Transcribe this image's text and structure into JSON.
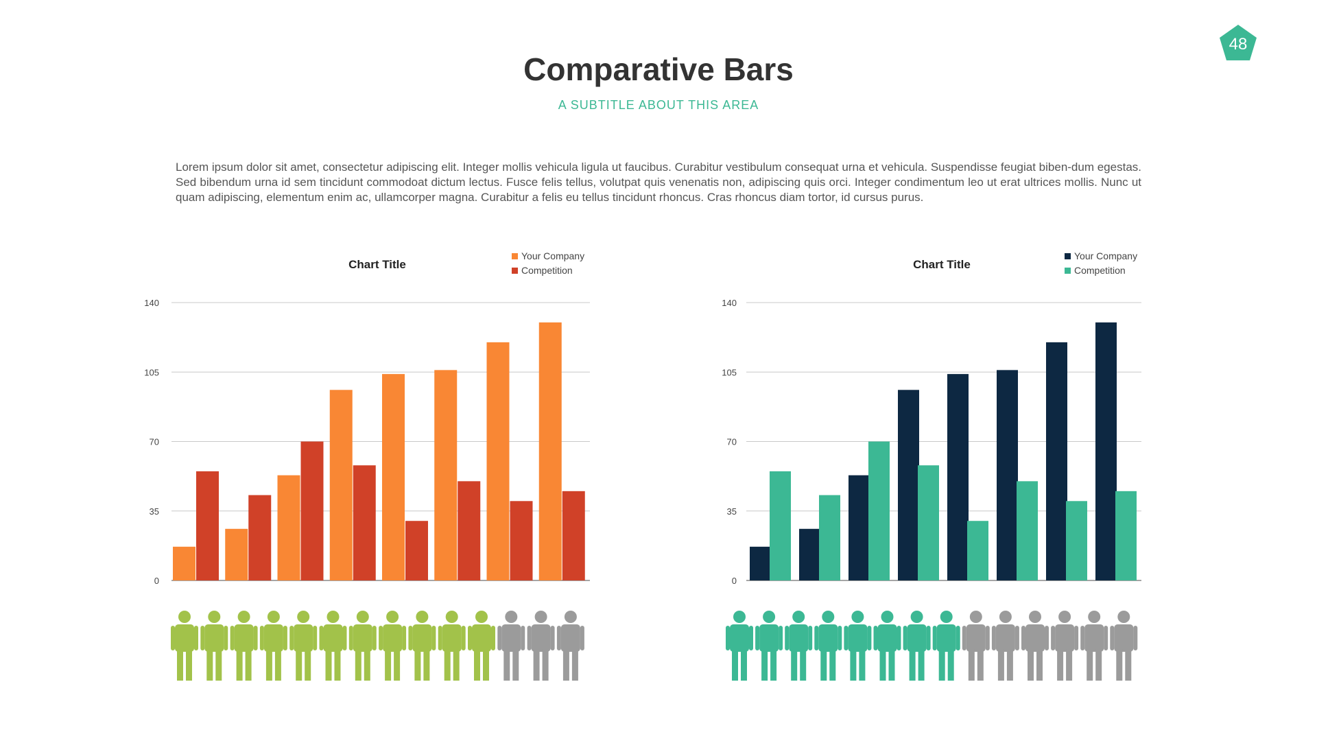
{
  "page": {
    "number": "48",
    "title": "Comparative Bars",
    "subtitle": "A SUBTITLE ABOUT THIS AREA",
    "body": "Lorem ipsum dolor sit amet, consectetur adipiscing elit. Integer mollis vehicula ligula ut faucibus. Curabitur vestibulum consequat urna et vehicula. Suspendisse feugiat biben-dum egestas. Sed bibendum urna id sem tincidunt commodoat dictum lectus. Fusce felis tellus, volutpat quis venenatis non, adipiscing quis orci. Integer condimentum leo ut erat ultrices mollis. Nunc ut quam adipiscing, elementum enim ac, ullamcorper magna. Curabitur a felis eu tellus tincidunt rhoncus. Cras rhoncus diam tortor, id cursus purus."
  },
  "colors": {
    "accent": "#3cb894",
    "orange": "#f98734",
    "red": "#d04128",
    "navy": "#0d2842",
    "teal": "#3cb894",
    "green": "#a2c24a",
    "gray": "#9b9b9b",
    "grid": "#c8c8c8"
  },
  "chart_data": [
    {
      "type": "bar",
      "title": "Chart Title",
      "ylim": [
        0,
        140
      ],
      "yticks": [
        "0",
        "35",
        "70",
        "105",
        "140"
      ],
      "grid": true,
      "legend_position": "top-right",
      "series": [
        {
          "name": "Your Company",
          "color": "#f98734",
          "values": [
            17,
            26,
            53,
            96,
            104,
            106,
            120,
            130
          ]
        },
        {
          "name": "Competition",
          "color": "#d04128",
          "values": [
            55,
            43,
            70,
            58,
            30,
            50,
            40,
            45
          ]
        }
      ],
      "people": {
        "total": 14,
        "highlighted": 11,
        "highlight_color": "#a2c24a",
        "rest_color": "#9b9b9b"
      }
    },
    {
      "type": "bar",
      "title": "Chart Title",
      "ylim": [
        0,
        140
      ],
      "yticks": [
        "0",
        "35",
        "70",
        "105",
        "140"
      ],
      "grid": true,
      "legend_position": "top-right",
      "series": [
        {
          "name": "Your Company",
          "color": "#0d2842",
          "values": [
            17,
            26,
            53,
            96,
            104,
            106,
            120,
            130
          ]
        },
        {
          "name": "Competition",
          "color": "#3cb894",
          "values": [
            55,
            43,
            70,
            58,
            30,
            50,
            40,
            45
          ]
        }
      ],
      "people": {
        "total": 14,
        "highlighted": 8,
        "highlight_color": "#3cb894",
        "rest_color": "#9b9b9b"
      }
    }
  ]
}
